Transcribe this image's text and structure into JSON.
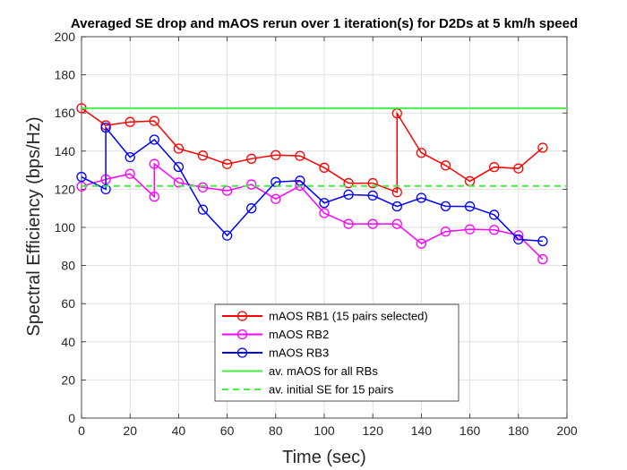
{
  "chart_data": {
    "type": "line",
    "title": "Averaged SE drop and mAOS rerun over 1 iteration(s) for D2Ds at 5 km/h speed",
    "xlabel": "Time (sec)",
    "ylabel": "Spectral Efficiency (bps/Hz)",
    "xlim": [
      0,
      200
    ],
    "ylim": [
      0,
      200
    ],
    "xticks": [
      0,
      20,
      40,
      60,
      80,
      100,
      120,
      140,
      160,
      180,
      200
    ],
    "yticks": [
      0,
      20,
      40,
      60,
      80,
      100,
      120,
      140,
      160,
      180,
      200
    ],
    "grid": true,
    "legend_position": "bottom-center",
    "series": [
      {
        "name": "mAOS RB1 (15 pairs selected)",
        "color": "#ff0000",
        "marker": "circle",
        "x": [
          0,
          10,
          20,
          30,
          40,
          50,
          60,
          70,
          80,
          90,
          100,
          110,
          120,
          130,
          130,
          140,
          150,
          160,
          170,
          180,
          190
        ],
        "y": [
          162.5,
          153.5,
          155.3,
          155.8,
          141.3,
          137.7,
          133.2,
          136.0,
          137.9,
          137.5,
          131.3,
          123.2,
          123.2,
          118.4,
          159.8,
          139.1,
          132.5,
          124.2,
          131.6,
          130.9,
          141.8
        ]
      },
      {
        "name": "mAOS RB2",
        "color": "#ff00ff",
        "marker": "circle",
        "x": [
          0,
          10,
          20,
          30,
          30,
          40,
          50,
          60,
          70,
          80,
          90,
          100,
          110,
          120,
          130,
          140,
          150,
          160,
          170,
          180,
          190
        ],
        "y": [
          121.5,
          125.2,
          128.1,
          116.1,
          133.3,
          123.5,
          121.0,
          119.2,
          122.5,
          114.9,
          121.8,
          107.5,
          101.8,
          101.8,
          101.8,
          91.5,
          97.8,
          99.0,
          98.7,
          95.8,
          83.3
        ]
      },
      {
        "name": "mAOS RB3",
        "color": "#0000ff",
        "marker": "circle",
        "x": [
          0,
          10,
          10,
          20,
          30,
          40,
          50,
          60,
          70,
          80,
          90,
          100,
          110,
          120,
          130,
          140,
          150,
          160,
          170,
          180,
          190
        ],
        "y": [
          126.5,
          120.0,
          152.3,
          136.8,
          146.0,
          131.7,
          109.3,
          95.7,
          110.0,
          123.8,
          124.5,
          112.8,
          117.2,
          116.7,
          111.0,
          115.5,
          111.1,
          111.0,
          106.6,
          93.7,
          92.8
        ]
      },
      {
        "name": "av. mAOS for all RBs",
        "color": "#44ee44",
        "style": "solid",
        "y_const": 162.5
      },
      {
        "name": "av. initial SE for 15 pairs",
        "color": "#44ee44",
        "style": "dashed",
        "y_const": 121.7
      }
    ]
  }
}
